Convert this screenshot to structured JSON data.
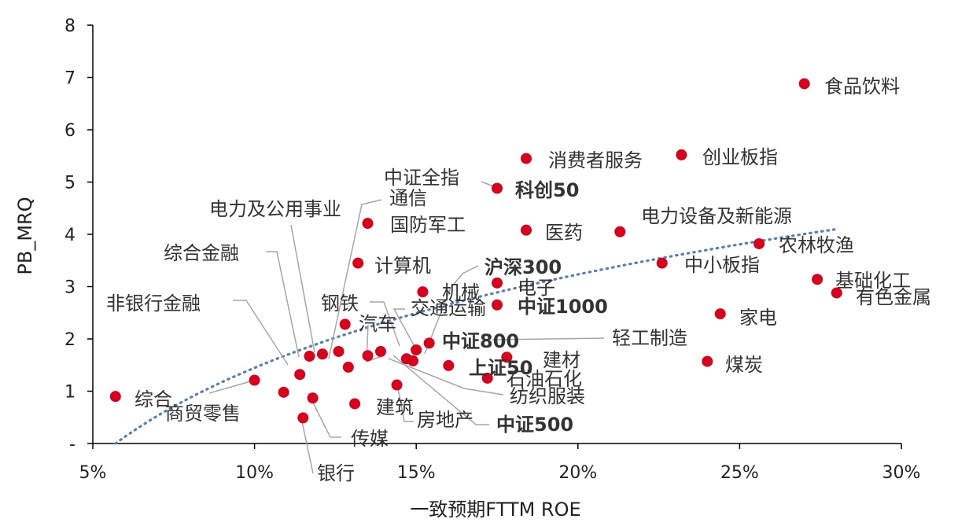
{
  "chart_data": {
    "type": "scatter",
    "xlabel": "一致预期FTTM ROE",
    "ylabel": "PB_MRQ",
    "xlim": [
      0.05,
      0.3
    ],
    "ylim": [
      0,
      8
    ],
    "x_ticks": [
      {
        "value": 0.05,
        "label": "5%"
      },
      {
        "value": 0.1,
        "label": "10%"
      },
      {
        "value": 0.15,
        "label": "15%"
      },
      {
        "value": 0.2,
        "label": "20%"
      },
      {
        "value": 0.25,
        "label": "25%"
      },
      {
        "value": 0.3,
        "label": "30%"
      }
    ],
    "y_ticks": [
      {
        "value": 0,
        "label": "-"
      },
      {
        "value": 1,
        "label": "1"
      },
      {
        "value": 2,
        "label": "2"
      },
      {
        "value": 3,
        "label": "3"
      },
      {
        "value": 4,
        "label": "4"
      },
      {
        "value": 5,
        "label": "5"
      },
      {
        "value": 6,
        "label": "6"
      },
      {
        "value": 7,
        "label": "7"
      },
      {
        "value": 8,
        "label": "8"
      }
    ],
    "marker_color": "#d9001b",
    "trend_color": "#4f81bd",
    "trendline": {
      "type": "log",
      "x_start": 0.057,
      "x_end": 0.28
    },
    "points": [
      {
        "label": "食品饮料",
        "x": 0.27,
        "y": 6.88,
        "bold": false
      },
      {
        "label": "消费者服务",
        "x": 0.184,
        "y": 5.45,
        "bold": false
      },
      {
        "label": "创业板指",
        "x": 0.232,
        "y": 5.52,
        "bold": false
      },
      {
        "label": "科创50",
        "x": 0.175,
        "y": 4.88,
        "bold": true
      },
      {
        "label": "医药",
        "x": 0.184,
        "y": 4.08,
        "bold": false
      },
      {
        "label": "电力设备及新能源",
        "x": 0.213,
        "y": 4.05,
        "bold": false
      },
      {
        "label": "农林牧渔",
        "x": 0.256,
        "y": 3.82,
        "bold": false
      },
      {
        "label": "中小板指",
        "x": 0.226,
        "y": 3.45,
        "bold": false
      },
      {
        "label": "基础化工",
        "x": 0.274,
        "y": 3.14,
        "bold": false
      },
      {
        "label": "有色金属",
        "x": 0.28,
        "y": 2.88,
        "bold": false
      },
      {
        "label": "家电",
        "x": 0.244,
        "y": 2.48,
        "bold": false
      },
      {
        "label": "煤炭",
        "x": 0.24,
        "y": 1.57,
        "bold": false
      },
      {
        "label": "国防军工",
        "x": 0.135,
        "y": 4.21,
        "bold": false
      },
      {
        "label": "计算机",
        "x": 0.132,
        "y": 3.45,
        "bold": false
      },
      {
        "label": "电子",
        "x": 0.175,
        "y": 3.07,
        "bold": false
      },
      {
        "label": "中证1000",
        "x": 0.175,
        "y": 2.65,
        "bold": true
      },
      {
        "label": "机械",
        "x": 0.152,
        "y": 2.9,
        "bold": false
      },
      {
        "label": "中证800",
        "x": 0.154,
        "y": 1.92,
        "bold": true
      },
      {
        "label": "上证50",
        "x": 0.16,
        "y": 1.49,
        "bold": true
      },
      {
        "label": "建材",
        "x": 0.178,
        "y": 1.65,
        "bold": false
      },
      {
        "label": "石油石化",
        "x": 0.172,
        "y": 1.25,
        "bold": false
      },
      {
        "label": "综合",
        "x": 0.057,
        "y": 0.9,
        "bold": false
      },
      {
        "label": "建筑",
        "x": 0.131,
        "y": 0.76,
        "bold": false
      },
      {
        "label": "中证全指",
        "x": null,
        "y": null,
        "bold": false
      },
      {
        "label": "通信",
        "x": null,
        "y": null,
        "bold": false
      },
      {
        "label": "电力及公用事业",
        "x": null,
        "y": null,
        "bold": false
      },
      {
        "label": "综合金融",
        "x": null,
        "y": null,
        "bold": false
      },
      {
        "label": "非银行金融",
        "x": null,
        "y": null,
        "bold": false
      },
      {
        "label": "沪深300",
        "x": null,
        "y": null,
        "bold": true
      },
      {
        "label": "交通运输",
        "x": null,
        "y": null,
        "bold": false
      },
      {
        "label": "钢铁",
        "x": null,
        "y": null,
        "bold": false
      },
      {
        "label": "汽车",
        "x": null,
        "y": null,
        "bold": false
      },
      {
        "label": "轻工制造",
        "x": null,
        "y": null,
        "bold": false
      },
      {
        "label": "纺织服装",
        "x": null,
        "y": null,
        "bold": false
      },
      {
        "label": "中证500",
        "x": null,
        "y": null,
        "bold": true
      },
      {
        "label": "房地产",
        "x": null,
        "y": null,
        "bold": false
      },
      {
        "label": "商贸零售",
        "x": null,
        "y": null,
        "bold": false
      },
      {
        "label": "传媒",
        "x": null,
        "y": null,
        "bold": false
      },
      {
        "label": "银行",
        "x": null,
        "y": null,
        "bold": false
      }
    ],
    "unlabeled_points": [
      {
        "x": 0.1,
        "y": 1.21
      },
      {
        "x": 0.109,
        "y": 0.98
      },
      {
        "x": 0.114,
        "y": 1.32
      },
      {
        "x": 0.117,
        "y": 1.67
      },
      {
        "x": 0.121,
        "y": 1.71
      },
      {
        "x": 0.126,
        "y": 1.76
      },
      {
        "x": 0.129,
        "y": 1.46
      },
      {
        "x": 0.135,
        "y": 1.68
      },
      {
        "x": 0.139,
        "y": 1.76
      },
      {
        "x": 0.144,
        "y": 1.12
      },
      {
        "x": 0.147,
        "y": 1.62
      },
      {
        "x": 0.149,
        "y": 1.58
      },
      {
        "x": 0.15,
        "y": 1.79
      },
      {
        "x": 0.118,
        "y": 0.87
      },
      {
        "x": 0.115,
        "y": 0.49
      },
      {
        "x": 0.128,
        "y": 2.28
      }
    ]
  }
}
